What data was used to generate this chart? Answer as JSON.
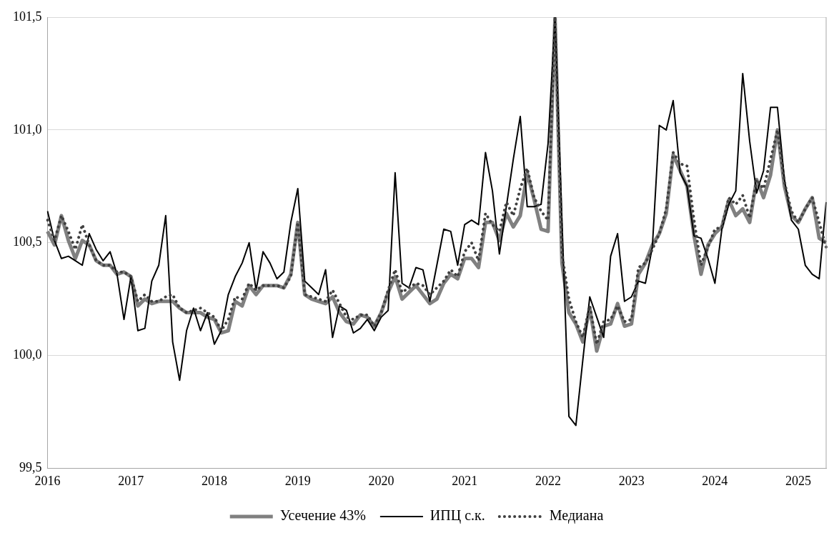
{
  "chart_data": {
    "type": "line",
    "categories": [
      "2016",
      null,
      null,
      null,
      null,
      null,
      null,
      null,
      null,
      null,
      null,
      null,
      "2017",
      null,
      null,
      null,
      null,
      null,
      null,
      null,
      null,
      null,
      null,
      null,
      "2018",
      null,
      null,
      null,
      null,
      null,
      null,
      null,
      null,
      null,
      null,
      null,
      "2019",
      null,
      null,
      null,
      null,
      null,
      null,
      null,
      null,
      null,
      null,
      null,
      "2020",
      null,
      null,
      null,
      null,
      null,
      null,
      null,
      null,
      null,
      null,
      null,
      "2021",
      null,
      null,
      null,
      null,
      null,
      null,
      null,
      null,
      null,
      null,
      null,
      "2022",
      null,
      null,
      null,
      null,
      null,
      null,
      null,
      null,
      null,
      null,
      null,
      "2023",
      null,
      null,
      null,
      null,
      null,
      null,
      null,
      null,
      null,
      null,
      null,
      "2024",
      null,
      null,
      null,
      null,
      null,
      null,
      null,
      null,
      null,
      null,
      null,
      "2025",
      null,
      null,
      null,
      null
    ],
    "series": [
      {
        "name": "Усечение 43%",
        "color": "#808080",
        "line_style": "solid",
        "values": [
          100.55,
          100.49,
          100.62,
          100.51,
          100.43,
          100.51,
          100.49,
          100.42,
          100.4,
          100.4,
          100.36,
          100.37,
          100.35,
          100.22,
          100.25,
          100.23,
          100.24,
          100.24,
          100.24,
          100.21,
          100.19,
          100.19,
          100.19,
          100.17,
          100.16,
          100.1,
          100.11,
          100.24,
          100.22,
          100.31,
          100.27,
          100.31,
          100.31,
          100.31,
          100.3,
          100.36,
          100.59,
          100.27,
          100.25,
          100.24,
          100.23,
          100.26,
          100.19,
          100.15,
          100.14,
          100.18,
          100.17,
          100.13,
          100.19,
          100.28,
          100.35,
          100.25,
          100.28,
          100.31,
          100.27,
          100.23,
          100.25,
          100.32,
          100.36,
          100.34,
          100.43,
          100.43,
          100.39,
          100.59,
          100.59,
          100.51,
          100.63,
          100.57,
          100.62,
          100.81,
          100.69,
          100.56,
          100.55,
          101.5,
          100.41,
          100.19,
          100.14,
          100.06,
          100.21,
          100.02,
          100.13,
          100.14,
          100.23,
          100.13,
          100.14,
          100.36,
          100.41,
          100.49,
          100.54,
          100.63,
          100.89,
          100.82,
          100.75,
          100.53,
          100.36,
          100.49,
          100.54,
          100.57,
          100.69,
          100.62,
          100.65,
          100.59,
          100.78,
          100.7,
          100.8,
          101.0,
          100.75,
          100.62,
          100.59,
          100.65,
          100.7,
          100.52,
          100.5
        ]
      },
      {
        "name": "ИПЦ с.к.",
        "color": "#000000",
        "line_style": "solid",
        "values": [
          100.64,
          100.51,
          100.43,
          100.44,
          100.42,
          100.4,
          100.54,
          100.47,
          100.42,
          100.46,
          100.36,
          100.16,
          100.35,
          100.11,
          100.12,
          100.33,
          100.4,
          100.62,
          100.06,
          99.89,
          100.11,
          100.21,
          100.11,
          100.19,
          100.05,
          100.11,
          100.27,
          100.35,
          100.41,
          100.5,
          100.29,
          100.46,
          100.41,
          100.34,
          100.37,
          100.59,
          100.74,
          100.33,
          100.3,
          100.27,
          100.38,
          100.08,
          100.22,
          100.2,
          100.1,
          100.12,
          100.16,
          100.11,
          100.17,
          100.2,
          100.81,
          100.32,
          100.3,
          100.39,
          100.38,
          100.24,
          100.4,
          100.56,
          100.55,
          100.4,
          100.58,
          100.6,
          100.58,
          100.9,
          100.73,
          100.45,
          100.66,
          100.87,
          101.06,
          100.66,
          100.66,
          100.67,
          100.94,
          101.5,
          100.6,
          99.73,
          99.69,
          99.98,
          100.26,
          100.17,
          100.08,
          100.44,
          100.54,
          100.24,
          100.26,
          100.33,
          100.32,
          100.48,
          101.02,
          101.0,
          101.13,
          100.81,
          100.75,
          100.53,
          100.52,
          100.43,
          100.32,
          100.56,
          100.67,
          100.73,
          101.25,
          100.95,
          100.72,
          100.82,
          101.1,
          101.1,
          100.78,
          100.6,
          100.56,
          100.4,
          100.36,
          100.34,
          100.68
        ]
      },
      {
        "name": "Медиана",
        "color": "#404040",
        "line_style": "dotted",
        "values": [
          100.6,
          100.51,
          100.62,
          100.55,
          100.47,
          100.58,
          100.49,
          100.42,
          100.4,
          100.4,
          100.37,
          100.37,
          100.35,
          100.24,
          100.27,
          100.24,
          100.24,
          100.26,
          100.27,
          100.21,
          100.19,
          100.2,
          100.21,
          100.19,
          100.17,
          100.11,
          100.16,
          100.26,
          100.25,
          100.32,
          100.29,
          100.31,
          100.31,
          100.31,
          100.3,
          100.35,
          100.59,
          100.27,
          100.26,
          100.25,
          100.24,
          100.29,
          100.23,
          100.17,
          100.16,
          100.18,
          100.18,
          100.13,
          100.19,
          100.29,
          100.38,
          100.28,
          100.3,
          100.32,
          100.31,
          100.27,
          100.3,
          100.33,
          100.38,
          100.35,
          100.46,
          100.5,
          100.42,
          100.63,
          100.58,
          100.55,
          100.68,
          100.62,
          100.74,
          100.83,
          100.7,
          100.64,
          100.6,
          101.5,
          100.45,
          100.25,
          100.15,
          100.08,
          100.22,
          100.05,
          100.15,
          100.16,
          100.22,
          100.15,
          100.16,
          100.39,
          100.41,
          100.47,
          100.54,
          100.65,
          100.9,
          100.85,
          100.84,
          100.6,
          100.4,
          100.48,
          100.56,
          100.57,
          100.7,
          100.67,
          100.71,
          100.61,
          100.78,
          100.74,
          100.87,
          101.0,
          100.77,
          100.64,
          100.59,
          100.65,
          100.7,
          100.59,
          100.48
        ]
      }
    ],
    "ylim": [
      99.5,
      101.5
    ],
    "yticks": [
      {
        "value": 99.5,
        "label": "99,5"
      },
      {
        "value": 100,
        "label": "100,0"
      },
      {
        "value": 100.5,
        "label": "100,5"
      },
      {
        "value": 101,
        "label": "101,0"
      },
      {
        "value": 101.5,
        "label": "101,5"
      }
    ],
    "grid": "y",
    "legend": "bottom",
    "marker": "none"
  }
}
